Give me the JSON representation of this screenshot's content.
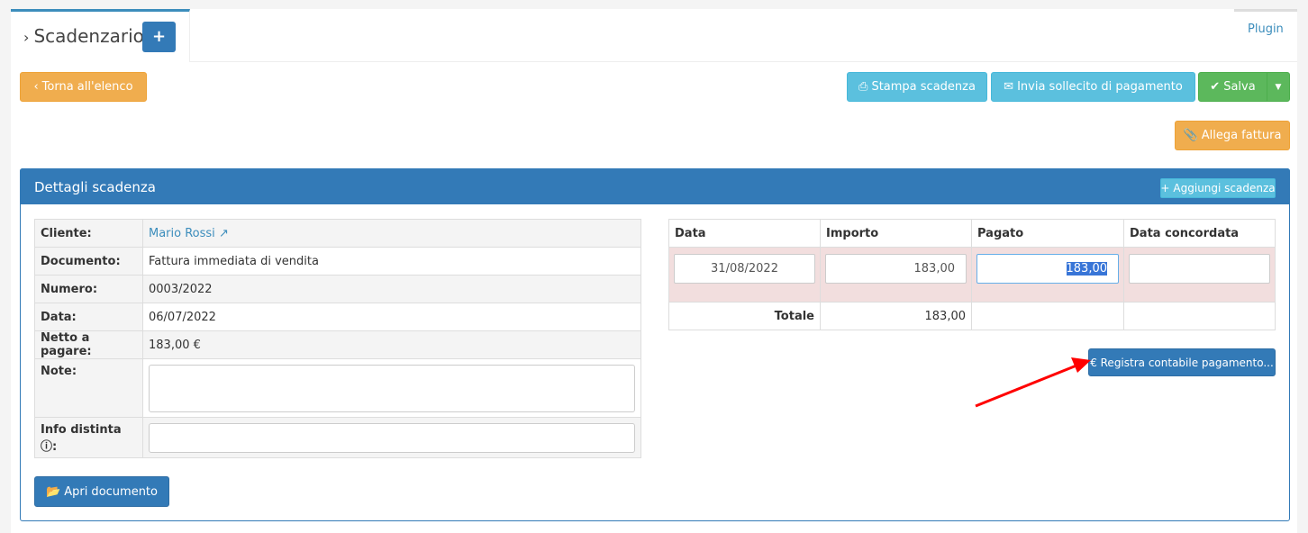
{
  "header": {
    "title": "Scadenzario",
    "add_icon": "plus-icon",
    "plugin_tab": "Plugin"
  },
  "toolbar": {
    "back": "Torna all'elenco",
    "print": "Stampa scadenza",
    "reminder": "Invia sollecito di pagamento",
    "save": "Salva",
    "attach": "Allega fattura"
  },
  "panel": {
    "title": "Dettagli scadenza",
    "add_due": "Aggiungi scadenza",
    "details": [
      {
        "label": "Cliente:",
        "value": "Mario Rossi"
      },
      {
        "label": "Documento:",
        "value": "Fattura immediata di vendita"
      },
      {
        "label": "Numero:",
        "value": "0003/2022"
      },
      {
        "label": "Data:",
        "value": "06/07/2022"
      },
      {
        "label": "Netto a pagare:",
        "value": "183,00 €"
      },
      {
        "label": "Note:",
        "value": ""
      },
      {
        "label": "Info distinta",
        "value": ""
      }
    ],
    "open_doc": "Apri documento",
    "schedule": {
      "headers": [
        "Data",
        "Importo",
        "Pagato",
        "Data concordata"
      ],
      "row": {
        "data": "31/08/2022",
        "importo": "183,00",
        "pagato": "183,00",
        "data_concordata": ""
      },
      "total_label": "Totale",
      "total_value": "183,00"
    },
    "register_payment": "€ Registra contabile pagamento..."
  },
  "colors": {
    "primary": "#337ab7",
    "warning": "#f0ad4e",
    "info": "#5bc0de",
    "success": "#5cb85c",
    "annotation_arrow": "#ff0000"
  }
}
